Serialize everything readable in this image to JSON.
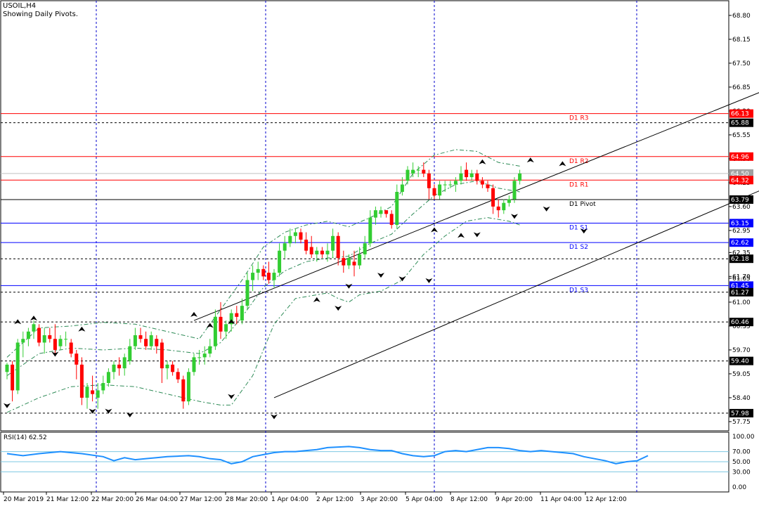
{
  "header": {
    "symbol": "USOIL,H4",
    "subtitle": "Showing Daily Pivots."
  },
  "rsi": {
    "label": "RSI(14) 62.52",
    "value": 62.52,
    "levels": [
      70,
      50,
      30
    ],
    "ticks": [
      "100.00",
      "70.00",
      "50.00",
      "30.00",
      "0.00"
    ]
  },
  "colors": {
    "bull": "#32cd32",
    "bear": "#ff0000",
    "grid": "#0000cd",
    "resistance": "#ff0000",
    "support": "#0000ff",
    "pivot": "#000000",
    "bands": "#2e8b57",
    "rsi_line": "#1e90ff",
    "rsi_levels": "#7ec8e3"
  },
  "chart_data": {
    "type": "candlestick",
    "title": "USOIL,H4",
    "subtitle": "Showing Daily Pivots.",
    "ylim": [
      57.5,
      69.2
    ],
    "y_ticks": [
      "68.80",
      "68.15",
      "67.50",
      "66.85",
      "66.20",
      "65.55",
      "64.90",
      "64.25",
      "63.60",
      "62.95",
      "62.35",
      "61.70",
      "61.65",
      "61.00",
      "60.35",
      "59.70",
      "59.05",
      "58.40",
      "57.75"
    ],
    "x_ticks": [
      "20 Mar 2019",
      "21 Mar 12:00",
      "22 Mar 20:00",
      "26 Mar 04:00",
      "27 Mar 12:00",
      "28 Mar 20:00",
      "1 Apr 04:00",
      "2 Apr 12:00",
      "3 Apr 20:00",
      "5 Apr 04:00",
      "8 Apr 12:00",
      "9 Apr 20:00",
      "11 Apr 04:00",
      "12 Apr 12:00"
    ],
    "price_labels": [
      {
        "value": 66.13,
        "text": "66.13",
        "kind": "resistance"
      },
      {
        "value": 65.88,
        "text": "65.88",
        "kind": "dotted"
      },
      {
        "value": 64.96,
        "text": "64.96",
        "kind": "resistance"
      },
      {
        "value": 64.5,
        "text": "64.50",
        "kind": "current"
      },
      {
        "value": 64.32,
        "text": "64.32",
        "kind": "resistance"
      },
      {
        "value": 63.79,
        "text": "63.79",
        "kind": "pivot"
      },
      {
        "value": 63.15,
        "text": "63.15",
        "kind": "support"
      },
      {
        "value": 62.62,
        "text": "62.62",
        "kind": "support"
      },
      {
        "value": 62.18,
        "text": "62.18",
        "kind": "dotted"
      },
      {
        "value": 61.45,
        "text": "61.45",
        "kind": "support"
      },
      {
        "value": 61.27,
        "text": "61.27",
        "kind": "dotted"
      },
      {
        "value": 60.46,
        "text": "60.46",
        "kind": "dotted"
      },
      {
        "value": 59.4,
        "text": "59.40",
        "kind": "dotted"
      },
      {
        "value": 57.98,
        "text": "57.98",
        "kind": "dotted"
      }
    ],
    "pivot_labels": [
      {
        "name": "D1 R3",
        "value": 66.13
      },
      {
        "name": "D1 R2",
        "value": 64.96
      },
      {
        "name": "D1 R1",
        "value": 64.32
      },
      {
        "name": "D1 Pivot",
        "value": 63.79
      },
      {
        "name": "D1 S1",
        "value": 63.15
      },
      {
        "name": "D1 S2",
        "value": 62.62
      },
      {
        "name": "D1 S3",
        "value": 61.45
      }
    ],
    "candles": [
      [
        59.1,
        59.35,
        58.9,
        59.3
      ],
      [
        59.3,
        59.4,
        58.3,
        58.6
      ],
      [
        58.6,
        60.0,
        58.5,
        59.9
      ],
      [
        59.9,
        60.2,
        59.5,
        60.0
      ],
      [
        60.0,
        60.3,
        59.8,
        60.2
      ],
      [
        60.2,
        60.5,
        60.0,
        60.4
      ],
      [
        60.3,
        60.4,
        59.8,
        59.9
      ],
      [
        59.9,
        60.3,
        59.6,
        60.1
      ],
      [
        60.1,
        60.3,
        59.9,
        60.0
      ],
      [
        60.0,
        60.4,
        59.6,
        59.7
      ],
      [
        59.8,
        60.1,
        59.7,
        60.0
      ],
      [
        60.0,
        60.2,
        59.8,
        60.0
      ],
      [
        59.9,
        60.0,
        59.5,
        59.6
      ],
      [
        59.6,
        59.7,
        58.9,
        59.3
      ],
      [
        59.3,
        59.5,
        58.2,
        58.4
      ],
      [
        58.4,
        58.8,
        58.1,
        58.7
      ],
      [
        58.6,
        59.0,
        58.3,
        58.5
      ],
      [
        58.4,
        58.8,
        58.1,
        58.6
      ],
      [
        58.6,
        59.0,
        58.5,
        58.8
      ],
      [
        58.8,
        59.2,
        58.7,
        59.1
      ],
      [
        59.1,
        59.4,
        58.9,
        59.3
      ],
      [
        59.3,
        59.5,
        59.0,
        59.2
      ],
      [
        59.2,
        59.6,
        59.0,
        59.5
      ],
      [
        59.4,
        60.0,
        59.3,
        59.8
      ],
      [
        59.8,
        60.3,
        59.7,
        60.1
      ],
      [
        60.1,
        60.3,
        59.9,
        60.0
      ],
      [
        60.0,
        60.2,
        59.7,
        59.8
      ],
      [
        59.8,
        60.2,
        59.7,
        60.1
      ],
      [
        60.0,
        60.1,
        59.6,
        59.8
      ],
      [
        59.9,
        60.0,
        58.8,
        59.2
      ],
      [
        59.2,
        59.4,
        58.9,
        59.3
      ],
      [
        59.3,
        59.4,
        59.0,
        59.1
      ],
      [
        59.1,
        59.2,
        58.8,
        58.9
      ],
      [
        58.9,
        59.0,
        58.1,
        58.3
      ],
      [
        58.3,
        59.2,
        58.2,
        59.1
      ],
      [
        59.1,
        59.6,
        59.0,
        59.5
      ],
      [
        59.5,
        59.7,
        59.3,
        59.5
      ],
      [
        59.5,
        59.8,
        59.3,
        59.6
      ],
      [
        59.6,
        60.0,
        59.5,
        59.8
      ],
      [
        59.8,
        60.8,
        59.7,
        60.6
      ],
      [
        60.6,
        61.0,
        60.0,
        60.2
      ],
      [
        60.2,
        60.5,
        60.0,
        60.4
      ],
      [
        60.4,
        60.8,
        60.2,
        60.7
      ],
      [
        60.7,
        60.9,
        60.4,
        60.6
      ],
      [
        60.5,
        61.1,
        60.4,
        60.9
      ],
      [
        60.9,
        61.8,
        60.8,
        61.6
      ],
      [
        61.6,
        62.0,
        61.3,
        61.8
      ],
      [
        61.8,
        62.1,
        61.6,
        61.9
      ],
      [
        61.9,
        62.0,
        61.6,
        61.7
      ],
      [
        61.8,
        62.1,
        61.5,
        61.6
      ],
      [
        61.6,
        61.9,
        61.4,
        61.8
      ],
      [
        61.8,
        62.6,
        61.7,
        62.4
      ],
      [
        62.4,
        62.8,
        62.2,
        62.6
      ],
      [
        62.6,
        63.0,
        62.5,
        62.8
      ],
      [
        62.8,
        63.0,
        62.6,
        62.9
      ],
      [
        62.9,
        63.0,
        62.6,
        62.7
      ],
      [
        62.7,
        62.9,
        62.3,
        62.4
      ],
      [
        62.5,
        62.8,
        62.2,
        62.3
      ],
      [
        62.3,
        62.5,
        62.1,
        62.4
      ],
      [
        62.4,
        62.5,
        62.2,
        62.3
      ],
      [
        62.3,
        62.6,
        62.1,
        62.4
      ],
      [
        62.4,
        63.0,
        62.2,
        62.8
      ],
      [
        62.8,
        62.9,
        62.0,
        62.2
      ],
      [
        62.2,
        62.4,
        61.8,
        62.0
      ],
      [
        62.0,
        62.3,
        61.9,
        62.2
      ],
      [
        62.1,
        62.4,
        61.7,
        62.0
      ],
      [
        62.0,
        62.5,
        61.9,
        62.3
      ],
      [
        62.3,
        62.8,
        62.2,
        62.6
      ],
      [
        62.6,
        63.5,
        62.5,
        63.3
      ],
      [
        63.3,
        63.6,
        63.1,
        63.5
      ],
      [
        63.4,
        63.6,
        63.3,
        63.5
      ],
      [
        63.5,
        63.5,
        63.3,
        63.4
      ],
      [
        63.4,
        63.5,
        63.0,
        63.1
      ],
      [
        63.1,
        64.2,
        63.0,
        64.0
      ],
      [
        64.0,
        64.4,
        63.9,
        64.2
      ],
      [
        64.3,
        64.7,
        64.2,
        64.6
      ],
      [
        64.5,
        64.8,
        64.4,
        64.6
      ],
      [
        64.6,
        64.7,
        64.4,
        64.6
      ],
      [
        64.6,
        64.8,
        64.4,
        64.5
      ],
      [
        64.5,
        64.6,
        63.8,
        64.1
      ],
      [
        64.1,
        64.2,
        63.8,
        63.9
      ],
      [
        63.9,
        64.3,
        63.8,
        64.2
      ],
      [
        64.2,
        64.3,
        64.0,
        64.2
      ],
      [
        64.2,
        64.3,
        64.1,
        64.2
      ],
      [
        64.2,
        64.4,
        64.0,
        64.3
      ],
      [
        64.3,
        64.7,
        64.2,
        64.5
      ],
      [
        64.6,
        64.8,
        64.3,
        64.4
      ],
      [
        64.4,
        64.6,
        64.3,
        64.5
      ],
      [
        64.5,
        64.6,
        64.2,
        64.3
      ],
      [
        64.3,
        64.4,
        64.1,
        64.2
      ],
      [
        64.2,
        64.3,
        64.0,
        64.1
      ],
      [
        64.1,
        64.2,
        63.4,
        63.6
      ],
      [
        63.6,
        63.8,
        63.3,
        63.5
      ],
      [
        63.5,
        63.8,
        63.4,
        63.7
      ],
      [
        63.7,
        63.9,
        63.6,
        63.8
      ],
      [
        63.8,
        64.4,
        63.7,
        64.3
      ],
      [
        64.3,
        64.6,
        64.2,
        64.5
      ]
    ],
    "upper_band": [
      [
        0,
        59.5
      ],
      [
        6,
        60.3
      ],
      [
        12,
        60.35
      ],
      [
        18,
        60.45
      ],
      [
        24,
        60.4
      ],
      [
        30,
        60.2
      ],
      [
        36,
        60.0
      ],
      [
        40,
        60.8
      ],
      [
        44,
        61.6
      ],
      [
        48,
        62.5
      ],
      [
        52,
        62.9
      ],
      [
        56,
        63.1
      ],
      [
        60,
        63.2
      ],
      [
        64,
        63.05
      ],
      [
        68,
        63.3
      ],
      [
        72,
        63.6
      ],
      [
        76,
        64.5
      ],
      [
        80,
        65.0
      ],
      [
        84,
        65.15
      ],
      [
        88,
        65.1
      ],
      [
        92,
        64.8
      ],
      [
        96,
        64.7
      ]
    ],
    "middle_band": [
      [
        0,
        59.0
      ],
      [
        6,
        59.6
      ],
      [
        12,
        59.75
      ],
      [
        18,
        59.7
      ],
      [
        24,
        59.75
      ],
      [
        30,
        59.7
      ],
      [
        36,
        59.6
      ],
      [
        40,
        59.9
      ],
      [
        44,
        60.6
      ],
      [
        48,
        61.4
      ],
      [
        52,
        61.85
      ],
      [
        56,
        62.1
      ],
      [
        60,
        62.2
      ],
      [
        64,
        62.25
      ],
      [
        68,
        62.6
      ],
      [
        72,
        62.85
      ],
      [
        76,
        63.4
      ],
      [
        80,
        63.9
      ],
      [
        84,
        64.2
      ],
      [
        88,
        64.3
      ],
      [
        92,
        64.1
      ],
      [
        96,
        64.0
      ]
    ],
    "lower_band": [
      [
        0,
        58.0
      ],
      [
        6,
        58.4
      ],
      [
        12,
        58.7
      ],
      [
        18,
        58.75
      ],
      [
        24,
        58.7
      ],
      [
        30,
        58.5
      ],
      [
        36,
        58.3
      ],
      [
        40,
        58.2
      ],
      [
        42,
        58.2
      ],
      [
        46,
        59.0
      ],
      [
        50,
        60.4
      ],
      [
        54,
        61.1
      ],
      [
        58,
        61.2
      ],
      [
        60,
        61.25
      ],
      [
        62,
        61.1
      ],
      [
        64,
        61.0
      ],
      [
        66,
        61.2
      ],
      [
        70,
        61.3
      ],
      [
        74,
        61.6
      ],
      [
        78,
        62.3
      ],
      [
        82,
        62.8
      ],
      [
        86,
        63.2
      ],
      [
        90,
        63.3
      ],
      [
        94,
        63.2
      ],
      [
        96,
        63.1
      ]
    ],
    "channel_upper": {
      "from": [
        35,
        60.5
      ],
      "to": [
        163,
        68.0
      ]
    },
    "channel_lower": {
      "from": [
        50,
        58.4
      ],
      "to": [
        163,
        65.4
      ]
    },
    "fractals_up": [
      [
        2,
        60.4
      ],
      [
        5,
        60.5
      ],
      [
        14,
        60.2
      ],
      [
        35,
        60.6
      ],
      [
        38,
        60.3
      ],
      [
        42,
        60.4
      ],
      [
        58,
        61.0
      ],
      [
        80,
        62.9
      ],
      [
        85,
        62.75
      ],
      [
        89,
        64.75
      ],
      [
        98,
        64.8
      ],
      [
        104,
        64.7
      ]
    ],
    "fractals_down": [
      [
        0,
        58.25
      ],
      [
        9,
        59.65
      ],
      [
        16,
        58.1
      ],
      [
        19,
        58.1
      ],
      [
        23,
        58.0
      ],
      [
        42,
        58.5
      ],
      [
        50,
        57.95
      ],
      [
        62,
        60.9
      ],
      [
        64,
        61.5
      ],
      [
        70,
        61.8
      ],
      [
        74,
        61.7
      ],
      [
        79,
        61.65
      ],
      [
        88,
        62.9
      ],
      [
        95,
        63.4
      ],
      [
        101,
        63.6
      ],
      [
        108,
        63.0
      ]
    ],
    "rsi_series": [
      [
        0,
        66
      ],
      [
        3,
        62
      ],
      [
        6,
        66
      ],
      [
        10,
        70
      ],
      [
        14,
        66
      ],
      [
        18,
        60
      ],
      [
        20,
        52
      ],
      [
        22,
        58
      ],
      [
        24,
        54
      ],
      [
        26,
        56
      ],
      [
        28,
        58
      ],
      [
        30,
        60
      ],
      [
        32,
        61
      ],
      [
        34,
        62
      ],
      [
        36,
        60
      ],
      [
        38,
        56
      ],
      [
        40,
        54
      ],
      [
        42,
        46
      ],
      [
        44,
        50
      ],
      [
        46,
        60
      ],
      [
        48,
        64
      ],
      [
        50,
        68
      ],
      [
        52,
        70
      ],
      [
        54,
        70
      ],
      [
        56,
        72
      ],
      [
        58,
        74
      ],
      [
        60,
        78
      ],
      [
        62,
        79
      ],
      [
        64,
        80
      ],
      [
        66,
        78
      ],
      [
        68,
        74
      ],
      [
        70,
        72
      ],
      [
        72,
        72
      ],
      [
        74,
        66
      ],
      [
        76,
        62
      ],
      [
        78,
        60
      ],
      [
        80,
        62
      ],
      [
        82,
        70
      ],
      [
        84,
        72
      ],
      [
        86,
        70
      ],
      [
        88,
        74
      ],
      [
        90,
        78
      ],
      [
        92,
        78
      ],
      [
        94,
        76
      ],
      [
        96,
        72
      ],
      [
        98,
        70
      ],
      [
        100,
        72
      ],
      [
        102,
        70
      ],
      [
        104,
        68
      ],
      [
        106,
        66
      ],
      [
        108,
        60
      ],
      [
        110,
        56
      ],
      [
        112,
        52
      ],
      [
        114,
        46
      ],
      [
        116,
        50
      ],
      [
        118,
        52
      ],
      [
        120,
        62
      ]
    ]
  }
}
